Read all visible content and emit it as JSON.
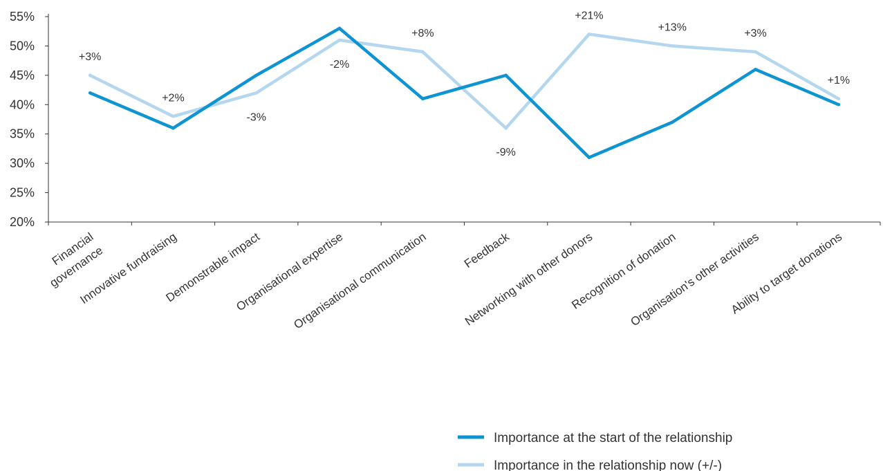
{
  "chart_data": {
    "type": "line",
    "categories": [
      [
        "Financial",
        "governance"
      ],
      [
        "Innovative fundraising"
      ],
      [
        "Demonstrable impact"
      ],
      [
        "Organisational expertise"
      ],
      [
        "Organisational communication"
      ],
      [
        "Feedback"
      ],
      [
        "Networking with other donors"
      ],
      [
        "Recognition of donation"
      ],
      [
        "Organisation's other activities"
      ],
      [
        "Ability to target donations"
      ]
    ],
    "series": [
      {
        "name": "Importance at the start of the relationship",
        "color": "#0E94D2",
        "values": [
          42,
          36,
          45,
          53,
          41,
          45,
          31,
          37,
          46,
          40
        ]
      },
      {
        "name": "Importance in the relationship now (+/-)",
        "color": "#B4D6EE",
        "values": [
          45,
          38,
          42,
          51,
          49,
          36,
          52,
          50,
          49,
          41
        ]
      }
    ],
    "data_labels": [
      "+3%",
      "+2%",
      "-3%",
      "-2%",
      "+8%",
      "-9%",
      "+21%",
      "+13%",
      "+3%",
      "+1%"
    ],
    "yticks": [
      "20%",
      "25%",
      "30%",
      "35%",
      "40%",
      "45%",
      "50%",
      "55%"
    ],
    "ylim": [
      20,
      55
    ],
    "xlabel": "",
    "ylabel": "",
    "legend_position": "bottom-right",
    "grid": false
  }
}
